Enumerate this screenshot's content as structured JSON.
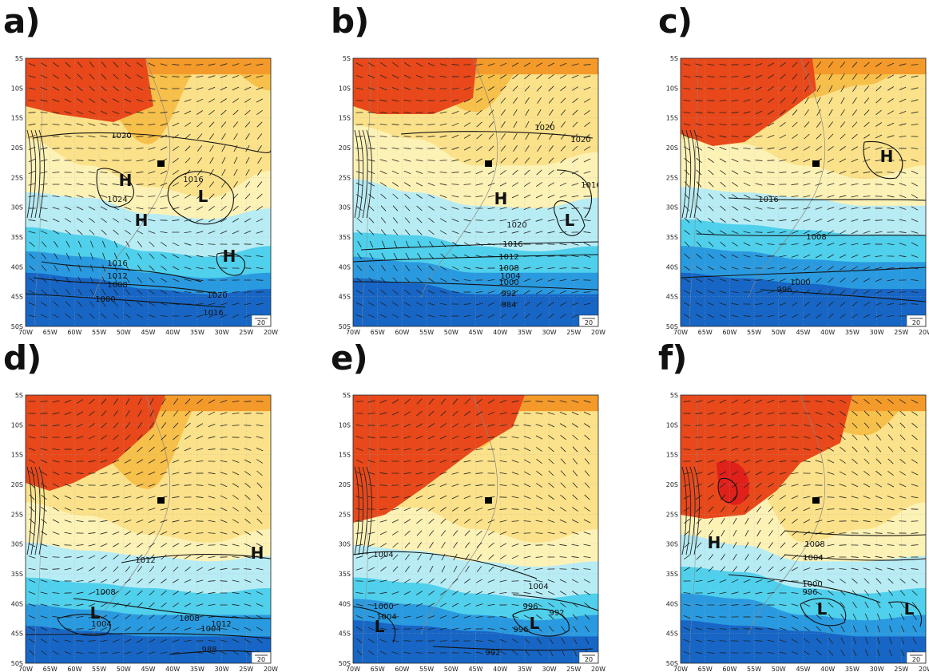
{
  "panels": [
    {
      "label": "a)",
      "highs": [
        {
          "t": "H"
        },
        {
          "t": "H"
        },
        {
          "t": "H"
        }
      ],
      "lows": [
        {
          "t": "L"
        }
      ],
      "contour_labels": [
        "1020",
        "1016",
        "1024",
        "1016",
        "1012",
        "1008",
        "1000",
        "1020",
        "1016"
      ]
    },
    {
      "label": "b)",
      "highs": [
        {
          "t": "H"
        }
      ],
      "lows": [
        {
          "t": "L"
        }
      ],
      "contour_labels": [
        "1020",
        "1020",
        "1016",
        "1020",
        "1016",
        "1012",
        "1008",
        "1004",
        "1000",
        "992",
        "984"
      ]
    },
    {
      "label": "c)",
      "highs": [
        {
          "t": "H"
        }
      ],
      "lows": [],
      "contour_labels": [
        "1016",
        "1008",
        "1000",
        "996"
      ]
    },
    {
      "label": "d)",
      "highs": [
        {
          "t": "H"
        }
      ],
      "lows": [
        {
          "t": "L"
        }
      ],
      "contour_labels": [
        "1012",
        "1008",
        "1012",
        "1004",
        "1008",
        "1004",
        "988"
      ]
    },
    {
      "label": "e)",
      "highs": [],
      "lows": [
        {
          "t": "L"
        },
        {
          "t": "L"
        }
      ],
      "contour_labels": [
        "1004",
        "1004",
        "1000",
        "1004",
        "996",
        "992",
        "996",
        "992"
      ]
    },
    {
      "label": "f)",
      "highs": [
        {
          "t": "H"
        }
      ],
      "lows": [
        {
          "t": "L"
        },
        {
          "t": "L"
        }
      ],
      "contour_labels": [
        "1008",
        "1004",
        "1000",
        "996"
      ]
    }
  ],
  "lat_ticks": [
    "5S",
    "10S",
    "15S",
    "20S",
    "25S",
    "30S",
    "35S",
    "40S",
    "45S",
    "50S"
  ],
  "lon_ticks": [
    "70W",
    "65W",
    "60W",
    "55W",
    "50W",
    "45W",
    "40W",
    "35W",
    "30W",
    "25W",
    "20W"
  ],
  "vector_scale_label": "20",
  "colors": {
    "red": "#e8481a",
    "orange": "#f49a2a",
    "lightorange": "#f7c04a",
    "yellow": "#fbe28a",
    "paleyellow": "#fdf2b6",
    "lightblue": "#b8ecf4",
    "cyan": "#4fd0ec",
    "blue": "#2a9ae0",
    "darkblue": "#1766c6"
  }
}
